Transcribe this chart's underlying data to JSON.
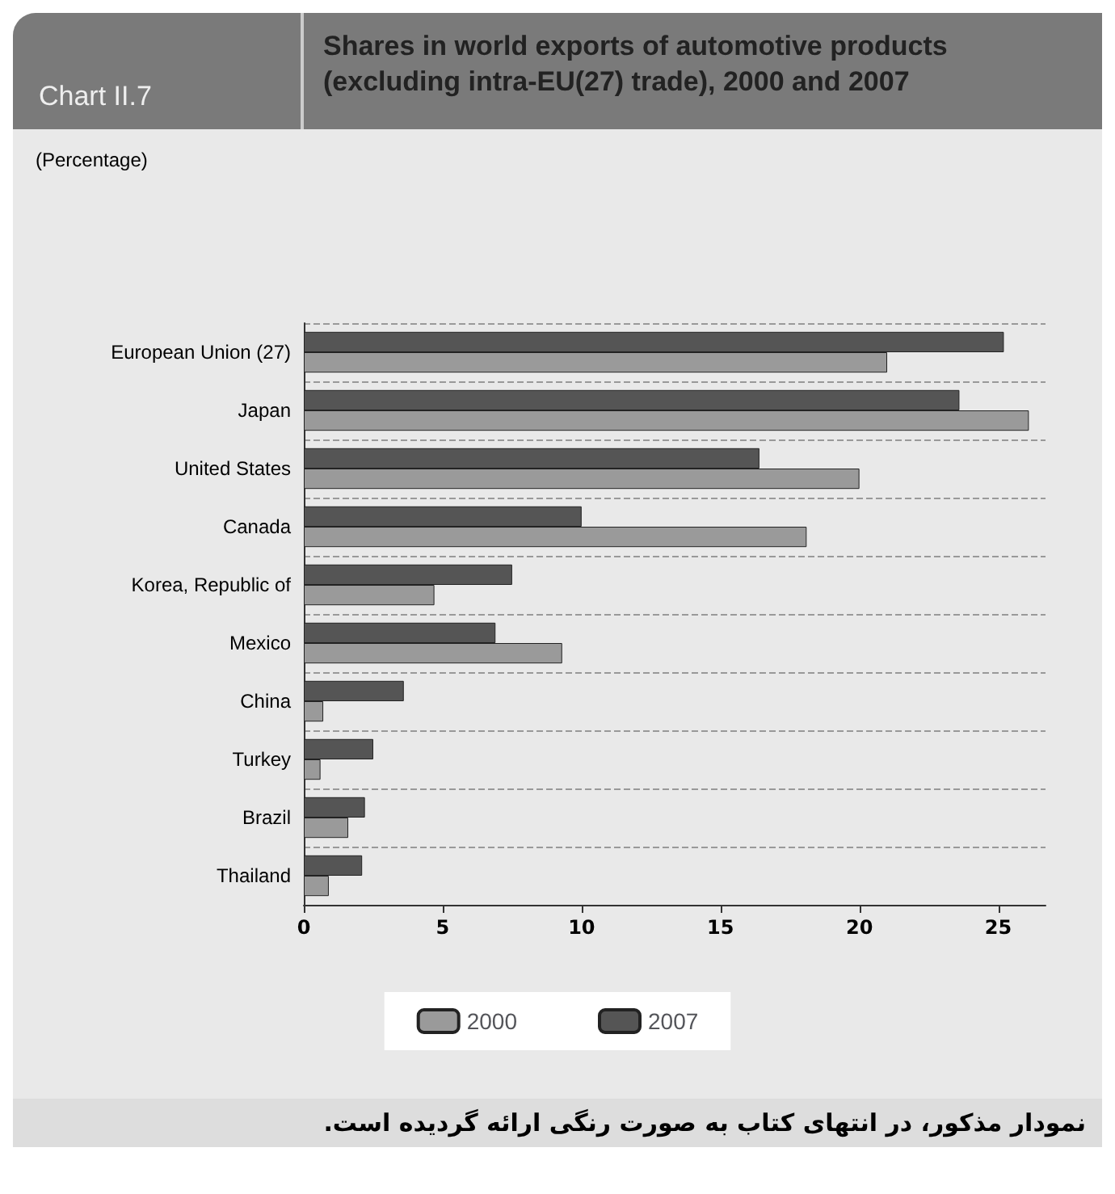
{
  "chart_data": {
    "type": "bar",
    "orientation": "horizontal",
    "title": "Shares in world exports of automotive products (excluding intra-EU(27) trade), 2000 and 2007",
    "annotations": [
      "Chart II.7",
      "(Percentage)",
      "نمودار مذکور، در انتهای کتاب به صورت رنگی ارائه گردیده است."
    ],
    "categories": [
      "European Union (27)",
      "Japan",
      "United States",
      "Canada",
      "Korea, Republic of",
      "Mexico",
      "China",
      "Turkey",
      "Brazil",
      "Thailand"
    ],
    "series": [
      {
        "name": "2000",
        "color": "#9a9a9a",
        "values": [
          21.0,
          26.1,
          20.0,
          18.1,
          4.7,
          9.3,
          0.7,
          0.6,
          1.6,
          0.9
        ]
      },
      {
        "name": "2007",
        "color": "#555555",
        "values": [
          25.2,
          23.6,
          16.4,
          10.0,
          7.5,
          6.9,
          3.6,
          2.5,
          2.2,
          2.1
        ]
      }
    ],
    "xlim": [
      0,
      26.7
    ],
    "xticks": [
      0,
      5,
      10,
      15,
      20,
      25
    ],
    "grid": "y",
    "legend": "bottom"
  }
}
